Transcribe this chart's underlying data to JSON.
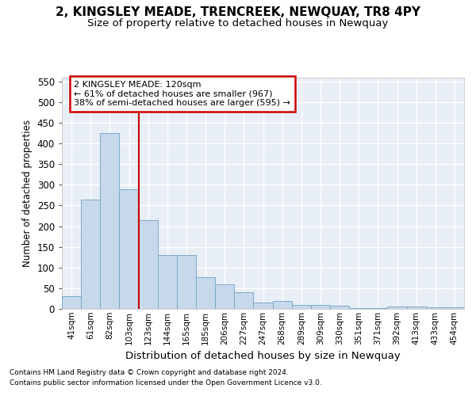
{
  "title": "2, KINGSLEY MEADE, TRENCREEK, NEWQUAY, TR8 4PY",
  "subtitle": "Size of property relative to detached houses in Newquay",
  "xlabel": "Distribution of detached houses by size in Newquay",
  "ylabel": "Number of detached properties",
  "bar_color": "#c8d8eb",
  "bar_edge_color": "#7aaac8",
  "categories": [
    "41sqm",
    "61sqm",
    "82sqm",
    "103sqm",
    "123sqm",
    "144sqm",
    "165sqm",
    "185sqm",
    "206sqm",
    "227sqm",
    "247sqm",
    "268sqm",
    "289sqm",
    "309sqm",
    "330sqm",
    "351sqm",
    "371sqm",
    "392sqm",
    "413sqm",
    "433sqm",
    "454sqm"
  ],
  "values": [
    30,
    265,
    425,
    290,
    215,
    130,
    130,
    76,
    59,
    40,
    15,
    20,
    10,
    9,
    8,
    1,
    1,
    5,
    5,
    3,
    4
  ],
  "vline_index": 4,
  "vline_color": "#cc0000",
  "annotation_line1": "2 KINGSLEY MEADE: 120sqm",
  "annotation_line2": "← 61% of detached houses are smaller (967)",
  "annotation_line3": "38% of semi-detached houses are larger (595) →",
  "annotation_box_edgecolor": "#cc0000",
  "ylim": [
    0,
    560
  ],
  "yticks": [
    0,
    50,
    100,
    150,
    200,
    250,
    300,
    350,
    400,
    450,
    500,
    550
  ],
  "footnote1": "Contains HM Land Registry data © Crown copyright and database right 2024.",
  "footnote2": "Contains public sector information licensed under the Open Government Licence v3.0.",
  "plot_bg": "#e8eef5",
  "fig_bg": "#ffffff",
  "grid_color": "#ffffff"
}
